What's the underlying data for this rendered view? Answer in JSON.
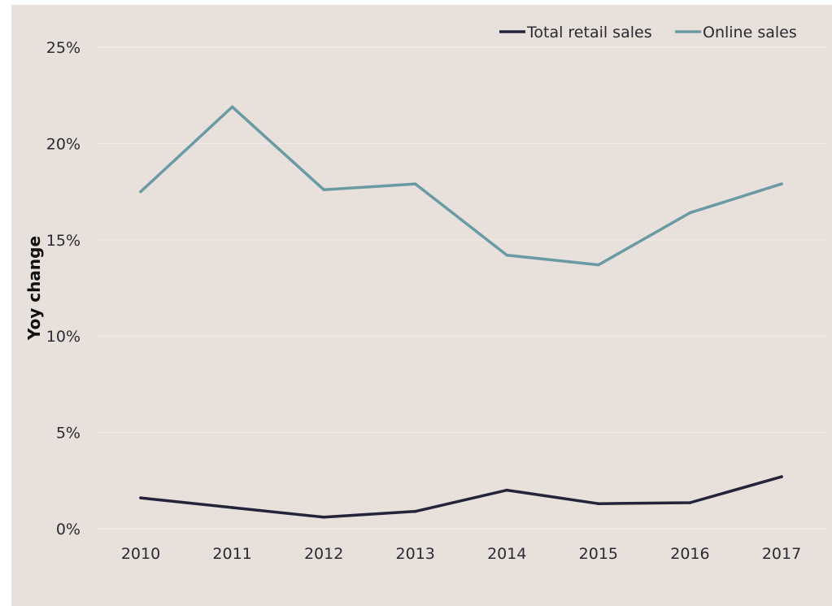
{
  "chart_data": {
    "type": "line",
    "title": "",
    "xlabel": "",
    "ylabel": "Yoy change",
    "x": [
      "2010",
      "2011",
      "2012",
      "2013",
      "2014",
      "2015",
      "2016",
      "2017"
    ],
    "yticks": [
      "0%",
      "5%",
      "10%",
      "15%",
      "20%",
      "25%"
    ],
    "ylim": [
      0,
      25
    ],
    "grid": true,
    "legend_position": "top-right",
    "series": [
      {
        "name": "Total retail sales",
        "color": "#23233a",
        "values": [
          1.6,
          1.1,
          0.6,
          0.9,
          2.0,
          1.3,
          1.35,
          2.7
        ]
      },
      {
        "name": "Online sales",
        "color": "#6a9aa3",
        "values": [
          17.5,
          21.9,
          17.6,
          17.9,
          14.2,
          13.7,
          16.4,
          17.9
        ]
      }
    ]
  },
  "colors": {
    "background": "#e8e0db",
    "gridline": "#f3eeeb",
    "text": "#2a2a33"
  }
}
